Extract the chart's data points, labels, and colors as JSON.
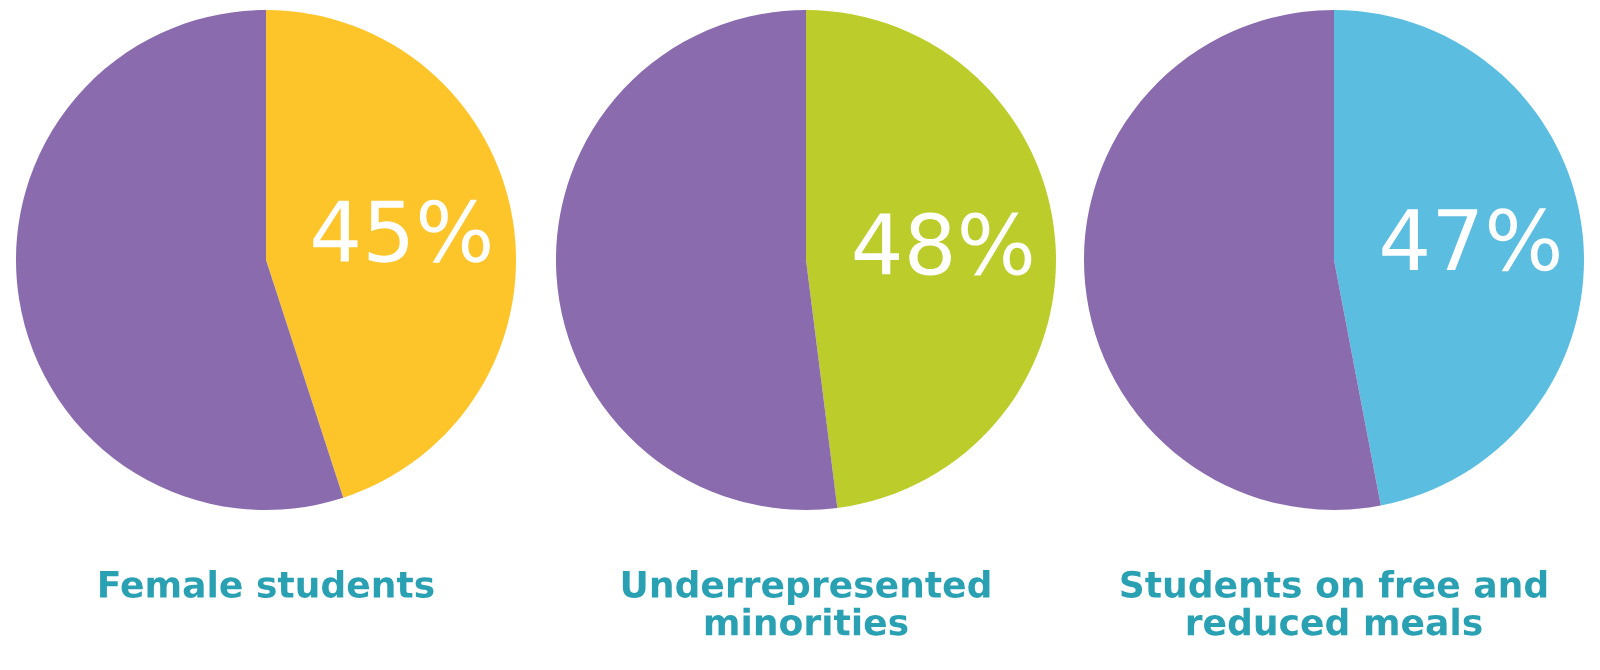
{
  "chart_data": [
    {
      "type": "pie",
      "title": "Female students",
      "categories": [
        null,
        null
      ],
      "values": [
        45,
        55
      ],
      "colors": [
        "#fdc52a",
        "#8a6bad"
      ],
      "value_labels": [
        "45%",
        null
      ]
    },
    {
      "type": "pie",
      "title": "Underrepresented\nminorities",
      "categories": [
        null,
        null
      ],
      "values": [
        48,
        52
      ],
      "colors": [
        "#bccd2b",
        "#8a6bad"
      ],
      "value_labels": [
        "48%",
        null
      ]
    },
    {
      "type": "pie",
      "title": "Students on free and\nreduced meals",
      "categories": [
        null,
        null
      ],
      "values": [
        47,
        53
      ],
      "colors": [
        "#5bbde0",
        "#8a6bad"
      ],
      "value_labels": [
        "47%",
        null
      ]
    }
  ]
}
